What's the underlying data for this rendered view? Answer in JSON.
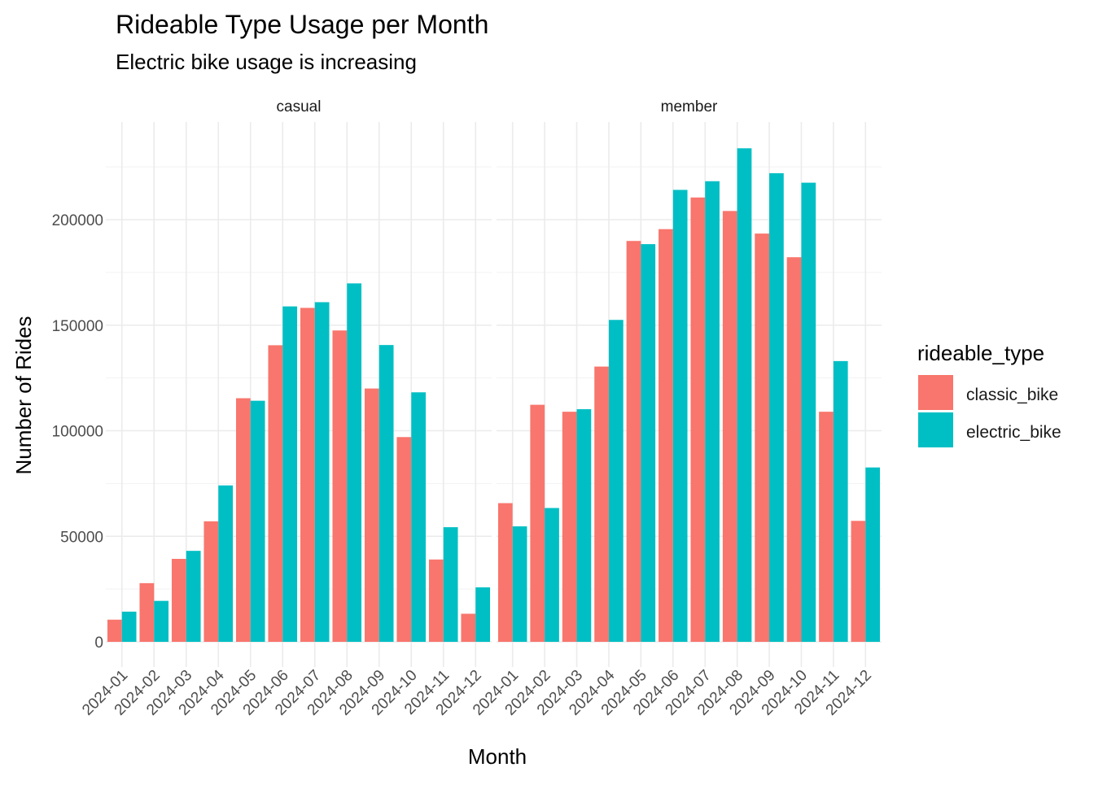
{
  "chart_data": {
    "type": "bar",
    "title": "Rideable Type Usage per Month",
    "subtitle": "Electric bike usage is increasing",
    "xlabel": "Month",
    "ylabel": "Number of Rides",
    "ylim": [
      0,
      245000
    ],
    "yticks": [
      0,
      50000,
      100000,
      150000,
      200000
    ],
    "ytick_labels": [
      "0",
      "50000",
      "100000",
      "150000",
      "200000"
    ],
    "grid": true,
    "legend": {
      "title": "rideable_type",
      "position": "right",
      "entries": [
        {
          "name": "classic_bike",
          "color": "#F8766D"
        },
        {
          "name": "electric_bike",
          "color": "#00BFC4"
        }
      ]
    },
    "categories": [
      "2024-01",
      "2024-02",
      "2024-03",
      "2024-04",
      "2024-05",
      "2024-06",
      "2024-07",
      "2024-08",
      "2024-09",
      "2024-10",
      "2024-11",
      "2024-12"
    ],
    "facets": [
      {
        "label": "casual",
        "series": [
          {
            "name": "classic_bike",
            "color": "#F8766D",
            "values": [
              10500,
              27800,
              39300,
              57100,
              115400,
              140500,
              158200,
              147500,
              120000,
              97000,
              39000,
              13300
            ]
          },
          {
            "name": "electric_bike",
            "color": "#00BFC4",
            "values": [
              14300,
              19400,
              43100,
              74100,
              114200,
              158900,
              160900,
              169800,
              140600,
              118200,
              54300,
              25800
            ]
          }
        ]
      },
      {
        "label": "member",
        "series": [
          {
            "name": "classic_bike",
            "color": "#F8766D",
            "values": [
              65700,
              112300,
              109000,
              130400,
              189900,
              195500,
              210500,
              204100,
              193400,
              182200,
              109000,
              57300
            ]
          },
          {
            "name": "electric_bike",
            "color": "#00BFC4",
            "values": [
              54700,
              63400,
              110200,
              152500,
              188400,
              214100,
              218200,
              233800,
              222000,
              217500,
              133000,
              82600
            ]
          }
        ]
      }
    ]
  }
}
